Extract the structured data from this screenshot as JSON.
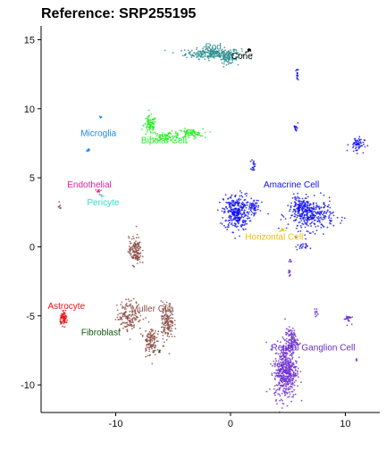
{
  "chart_data": {
    "type": "scatter",
    "title": "Reference: SRP255195",
    "xlabel": "",
    "ylabel": "",
    "xlim": [
      -16.5,
      13
    ],
    "ylim": [
      -12,
      16
    ],
    "xticks": [
      -10,
      0,
      10
    ],
    "yticks": [
      -10,
      -5,
      0,
      5,
      10,
      15
    ],
    "grid": false,
    "legend": "none",
    "clusters": [
      {
        "label": "Rod",
        "color": "#2a8c8e",
        "label_x": -1.5,
        "label_y": 14.3,
        "blobs": [
          [
            -1.5,
            14.0,
            2.2,
            0.35,
            260
          ],
          [
            -0.2,
            13.6,
            0.7,
            0.3,
            60
          ]
        ]
      },
      {
        "label": "Cone",
        "color": "#000000",
        "label_x": 1.0,
        "label_y": 13.6,
        "blobs": [
          [
            1.6,
            14.2,
            0.25,
            0.12,
            15
          ]
        ]
      },
      {
        "label": "Microglia",
        "color": "#1e88e5",
        "label_x": -11.5,
        "label_y": 8.0,
        "blobs": [
          [
            -12.4,
            7.0,
            0.15,
            0.15,
            10
          ],
          [
            -11.3,
            9.4,
            0.1,
            0.1,
            6
          ]
        ]
      },
      {
        "label": "Bipolar Cell",
        "color": "#22ee22",
        "label_x": -5.8,
        "label_y": 7.5,
        "blobs": [
          [
            -7.0,
            8.8,
            0.5,
            0.6,
            90
          ],
          [
            -5.5,
            8.0,
            1.2,
            0.3,
            80
          ],
          [
            -3.5,
            8.2,
            1.0,
            0.3,
            80
          ]
        ]
      },
      {
        "label": "Endothelial",
        "color": "#e020a0",
        "label_x": -12.3,
        "label_y": 4.3,
        "blobs": [
          [
            -11.5,
            4.0,
            0.25,
            0.2,
            12
          ]
        ]
      },
      {
        "label": "Pericyte",
        "color": "#2ee0d0",
        "label_x": -11.1,
        "label_y": 3.0,
        "blobs": [
          [
            -11.2,
            3.7,
            0.15,
            0.12,
            6
          ]
        ]
      },
      {
        "label": "Amacrine Cell",
        "color": "#1010ee",
        "label_x": 5.3,
        "label_y": 4.3,
        "blobs": [
          [
            0.5,
            2.5,
            1.0,
            1.2,
            320
          ],
          [
            2.0,
            2.9,
            0.5,
            0.5,
            60
          ],
          [
            7.0,
            2.3,
            1.8,
            1.0,
            340
          ],
          [
            6.0,
            3.0,
            0.6,
            0.6,
            70
          ],
          [
            2.0,
            5.9,
            0.15,
            0.4,
            20
          ],
          [
            5.8,
            12.5,
            0.1,
            0.4,
            15
          ],
          [
            5.7,
            8.7,
            0.15,
            0.4,
            15
          ],
          [
            11.0,
            7.4,
            0.6,
            0.5,
            60
          ],
          [
            6.2,
            0.0,
            0.5,
            0.2,
            20
          ]
        ]
      },
      {
        "label": "Horizontal Cell",
        "color": "#f0c000",
        "label_x": 3.8,
        "label_y": 0.5,
        "blobs": [
          [
            4.5,
            1.2,
            0.2,
            0.15,
            10
          ]
        ]
      },
      {
        "label": "Retinal Ganglion Cell",
        "color": "#6a2ccf",
        "label_x": 7.2,
        "label_y": -7.5,
        "blobs": [
          [
            4.8,
            -9.0,
            0.9,
            1.8,
            500
          ],
          [
            5.3,
            -6.8,
            0.5,
            0.8,
            120
          ],
          [
            10.2,
            -5.2,
            0.3,
            0.3,
            25
          ],
          [
            7.4,
            -4.7,
            0.12,
            0.3,
            10
          ],
          [
            5.1,
            -1.9,
            0.15,
            0.3,
            10
          ],
          [
            5.2,
            -1.0,
            0.1,
            0.15,
            6
          ],
          [
            11.0,
            -8.2,
            0.08,
            0.1,
            4
          ]
        ]
      },
      {
        "label": "Muller Glia",
        "color": "#8b4c43",
        "label_x": -6.8,
        "label_y": -4.7,
        "blobs": [
          [
            -8.3,
            -0.3,
            0.5,
            0.9,
            140
          ],
          [
            -8.8,
            -5.0,
            1.0,
            1.0,
            150
          ],
          [
            -7.0,
            -6.8,
            0.5,
            1.0,
            120
          ],
          [
            -5.5,
            -5.5,
            0.5,
            1.3,
            150
          ]
        ]
      },
      {
        "label": "Astrocyte",
        "color": "#ee1111",
        "label_x": -14.3,
        "label_y": -4.5,
        "blobs": [
          [
            -14.5,
            -5.2,
            0.3,
            0.4,
            70
          ]
        ]
      },
      {
        "label": "Fibroblast",
        "color": "#0a5a0a",
        "label_x": -11.3,
        "label_y": -6.4,
        "blobs": [
          [
            -6.2,
            -7.6,
            0.12,
            0.12,
            6
          ]
        ]
      }
    ],
    "extra_points": [
      {
        "color": "#8b4c43",
        "blobs": [
          [
            -14.9,
            2.9,
            0.15,
            0.2,
            8
          ]
        ]
      }
    ]
  }
}
